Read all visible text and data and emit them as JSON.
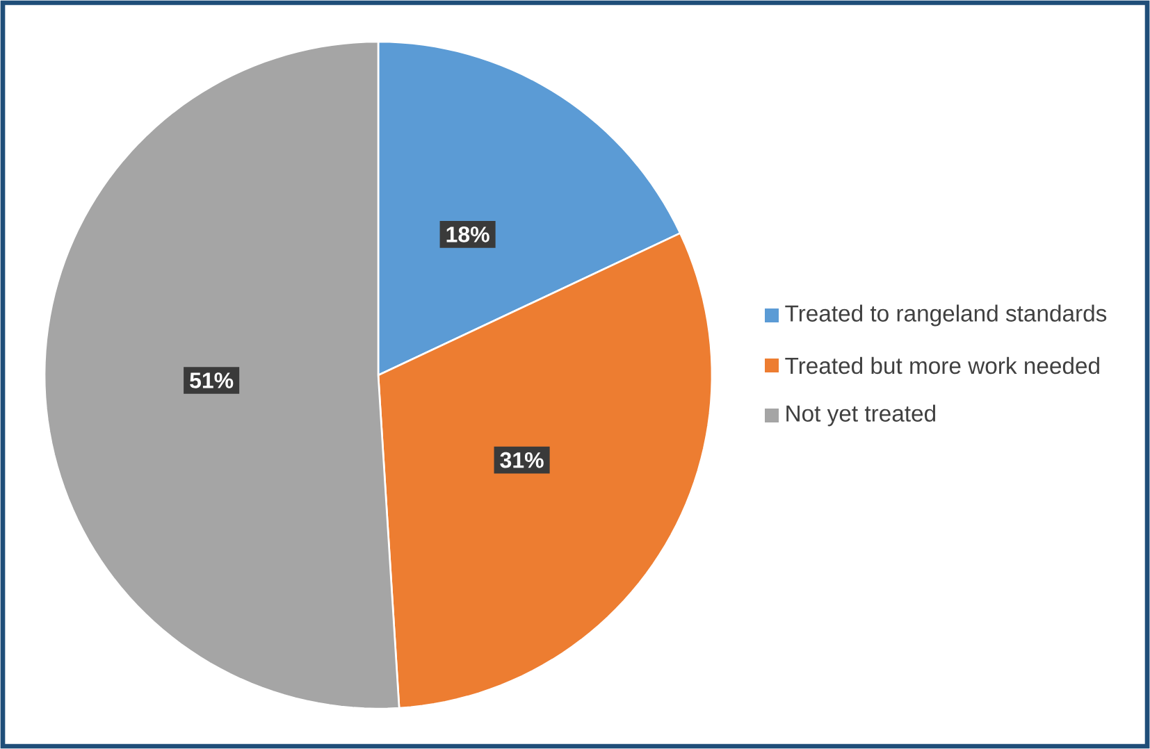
{
  "chart_data": {
    "type": "pie",
    "categories": [
      "Treated to rangeland standards",
      "Treated but more work needed",
      "Not yet treated"
    ],
    "values": [
      18,
      31,
      51
    ],
    "colors": [
      "#5b9bd5",
      "#ed7d31",
      "#a5a5a5"
    ],
    "value_labels": [
      "18%",
      "31%",
      "51%"
    ],
    "legend": "right"
  }
}
